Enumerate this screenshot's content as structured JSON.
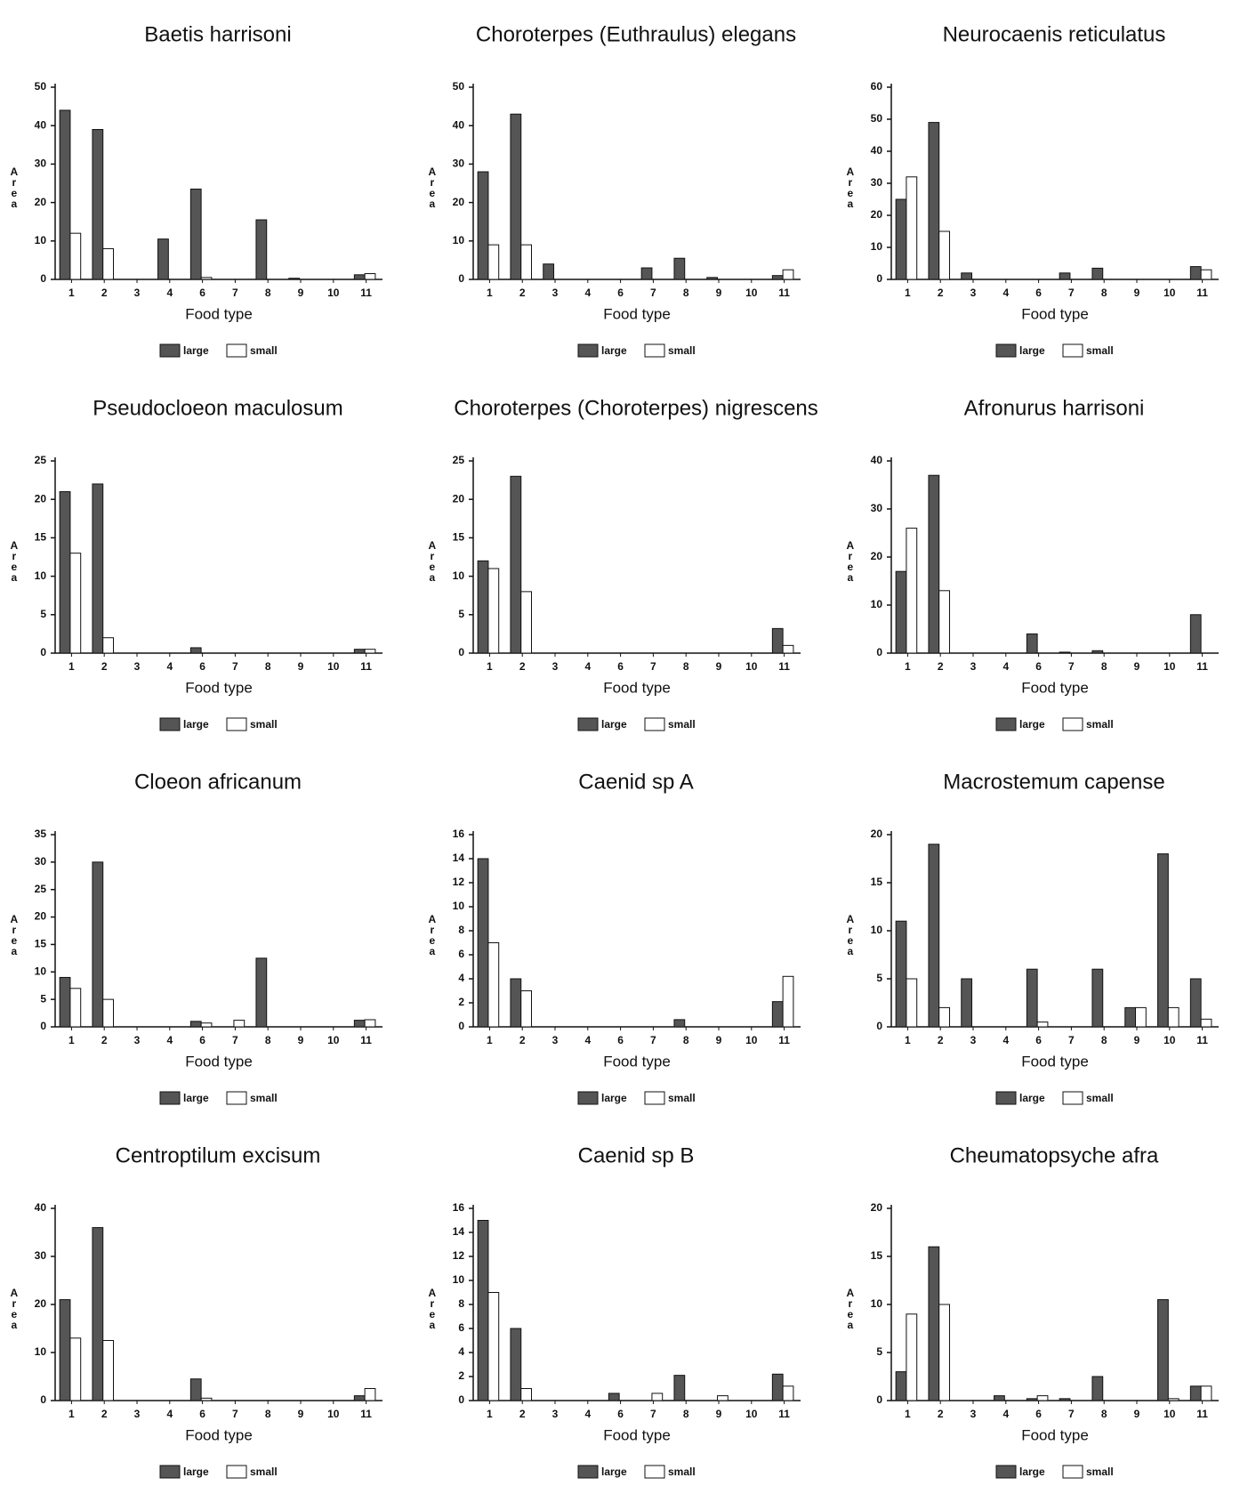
{
  "chart_data": [
    {
      "type": "bar",
      "title": "Baetis harrisoni",
      "x_label": "Food type",
      "y_label": "Area",
      "categories": [
        "1",
        "2",
        "3",
        "4",
        "6",
        "7",
        "8",
        "9",
        "10",
        "11"
      ],
      "series": [
        {
          "name": "large",
          "color": "#555555",
          "values": [
            44,
            39,
            0,
            10.5,
            23.5,
            0,
            15.5,
            0.3,
            0,
            1.2
          ]
        },
        {
          "name": "small",
          "color": "#ffffff",
          "values": [
            12,
            8,
            0,
            0,
            0.5,
            0,
            0,
            0,
            0,
            1.5
          ]
        }
      ],
      "ylim": [
        0,
        50
      ],
      "yticks": [
        0,
        10,
        20,
        30,
        40,
        50
      ]
    },
    {
      "type": "bar",
      "title": "Choroterpes (Euthraulus) elegans",
      "x_label": "Food type",
      "y_label": "Area",
      "categories": [
        "1",
        "2",
        "3",
        "4",
        "6",
        "7",
        "8",
        "9",
        "10",
        "11"
      ],
      "series": [
        {
          "name": "large",
          "color": "#555555",
          "values": [
            28,
            43,
            4,
            0,
            0,
            3,
            5.5,
            0.5,
            0,
            1
          ]
        },
        {
          "name": "small",
          "color": "#ffffff",
          "values": [
            9,
            9,
            0,
            0,
            0,
            0,
            0,
            0,
            0,
            2.5
          ]
        }
      ],
      "ylim": [
        0,
        50
      ],
      "yticks": [
        0,
        10,
        20,
        30,
        40,
        50
      ]
    },
    {
      "type": "bar",
      "title": "Neurocaenis reticulatus",
      "x_label": "Food type",
      "y_label": "Area",
      "categories": [
        "1",
        "2",
        "3",
        "4",
        "6",
        "7",
        "8",
        "9",
        "10",
        "11"
      ],
      "series": [
        {
          "name": "large",
          "color": "#555555",
          "values": [
            25,
            49,
            2,
            0,
            0,
            2,
            3.5,
            0,
            0,
            4
          ]
        },
        {
          "name": "small",
          "color": "#ffffff",
          "values": [
            32,
            15,
            0,
            0,
            0,
            0,
            0,
            0,
            0,
            3
          ]
        }
      ],
      "ylim": [
        0,
        60
      ],
      "yticks": [
        0,
        10,
        20,
        30,
        40,
        50,
        60
      ]
    },
    {
      "type": "bar",
      "title": "Pseudocloeon maculosum",
      "x_label": "Food type",
      "y_label": "Area",
      "categories": [
        "1",
        "2",
        "3",
        "4",
        "6",
        "7",
        "8",
        "9",
        "10",
        "11"
      ],
      "series": [
        {
          "name": "large",
          "color": "#555555",
          "values": [
            21,
            22,
            0,
            0,
            0.7,
            0,
            0,
            0,
            0,
            0.5
          ]
        },
        {
          "name": "small",
          "color": "#ffffff",
          "values": [
            13,
            2,
            0,
            0,
            0,
            0,
            0,
            0,
            0,
            0.5
          ]
        }
      ],
      "ylim": [
        0,
        25
      ],
      "yticks": [
        0,
        5,
        10,
        15,
        20,
        25
      ]
    },
    {
      "type": "bar",
      "title": "Choroterpes (Choroterpes) nigrescens",
      "x_label": "Food type",
      "y_label": "Area",
      "categories": [
        "1",
        "2",
        "3",
        "4",
        "6",
        "7",
        "8",
        "9",
        "10",
        "11"
      ],
      "series": [
        {
          "name": "large",
          "color": "#555555",
          "values": [
            12,
            23,
            0,
            0,
            0,
            0,
            0,
            0,
            0,
            3.2
          ]
        },
        {
          "name": "small",
          "color": "#ffffff",
          "values": [
            11,
            8,
            0,
            0,
            0,
            0,
            0,
            0,
            0,
            1
          ]
        }
      ],
      "ylim": [
        0,
        25
      ],
      "yticks": [
        0,
        5,
        10,
        15,
        20,
        25
      ]
    },
    {
      "type": "bar",
      "title": "Afronurus harrisoni",
      "x_label": "Food type",
      "y_label": "Area",
      "categories": [
        "1",
        "2",
        "3",
        "4",
        "6",
        "7",
        "8",
        "9",
        "10",
        "11"
      ],
      "series": [
        {
          "name": "large",
          "color": "#555555",
          "values": [
            17,
            37,
            0,
            0,
            4,
            0.2,
            0.5,
            0,
            0,
            8
          ]
        },
        {
          "name": "small",
          "color": "#ffffff",
          "values": [
            26,
            13,
            0,
            0,
            0,
            0,
            0,
            0,
            0,
            0
          ]
        }
      ],
      "ylim": [
        0,
        40
      ],
      "yticks": [
        0,
        10,
        20,
        30,
        40
      ]
    },
    {
      "type": "bar",
      "title": "Cloeon africanum",
      "x_label": "Food type",
      "y_label": "Area",
      "categories": [
        "1",
        "2",
        "3",
        "4",
        "6",
        "7",
        "8",
        "9",
        "10",
        "11"
      ],
      "series": [
        {
          "name": "large",
          "color": "#555555",
          "values": [
            9,
            30,
            0,
            0,
            1,
            0,
            12.5,
            0,
            0,
            1.2
          ]
        },
        {
          "name": "small",
          "color": "#ffffff",
          "values": [
            7,
            5,
            0,
            0,
            0.7,
            1.2,
            0,
            0,
            0,
            1.3
          ]
        }
      ],
      "ylim": [
        0,
        35
      ],
      "yticks": [
        0,
        5,
        10,
        15,
        20,
        25,
        30,
        35
      ]
    },
    {
      "type": "bar",
      "title": "Caenid sp A",
      "x_label": "Food type",
      "y_label": "Area",
      "categories": [
        "1",
        "2",
        "3",
        "4",
        "6",
        "7",
        "8",
        "9",
        "10",
        "11"
      ],
      "series": [
        {
          "name": "large",
          "color": "#555555",
          "values": [
            14,
            4,
            0,
            0,
            0,
            0,
            0.6,
            0,
            0,
            2.1
          ]
        },
        {
          "name": "small",
          "color": "#ffffff",
          "values": [
            7,
            3,
            0,
            0,
            0,
            0,
            0,
            0,
            0,
            4.2
          ]
        }
      ],
      "ylim": [
        0,
        16
      ],
      "yticks": [
        0,
        2,
        4,
        6,
        8,
        10,
        12,
        14,
        16
      ]
    },
    {
      "type": "bar",
      "title": "Macrostemum capense",
      "x_label": "Food type",
      "y_label": "Area",
      "categories": [
        "1",
        "2",
        "3",
        "4",
        "6",
        "7",
        "8",
        "9",
        "10",
        "11"
      ],
      "series": [
        {
          "name": "large",
          "color": "#555555",
          "values": [
            11,
            19,
            5,
            0,
            6,
            0,
            6,
            2,
            18,
            5
          ]
        },
        {
          "name": "small",
          "color": "#ffffff",
          "values": [
            5,
            2,
            0,
            0,
            0.5,
            0,
            0,
            2,
            2,
            0.8
          ]
        }
      ],
      "ylim": [
        0,
        20
      ],
      "yticks": [
        0,
        5,
        10,
        15,
        20
      ]
    },
    {
      "type": "bar",
      "title": "Centroptilum excisum",
      "x_label": "Food type",
      "y_label": "Area",
      "categories": [
        "1",
        "2",
        "3",
        "4",
        "6",
        "7",
        "8",
        "9",
        "10",
        "11"
      ],
      "series": [
        {
          "name": "large",
          "color": "#555555",
          "values": [
            21,
            36,
            0,
            0,
            4.5,
            0,
            0,
            0,
            0,
            1
          ]
        },
        {
          "name": "small",
          "color": "#ffffff",
          "values": [
            13,
            12.5,
            0,
            0,
            0.5,
            0,
            0,
            0,
            0,
            2.5
          ]
        }
      ],
      "ylim": [
        0,
        40
      ],
      "yticks": [
        0,
        10,
        20,
        30,
        40
      ]
    },
    {
      "type": "bar",
      "title": "Caenid sp B",
      "x_label": "Food type",
      "y_label": "Area",
      "categories": [
        "1",
        "2",
        "3",
        "4",
        "6",
        "7",
        "8",
        "9",
        "10",
        "11"
      ],
      "series": [
        {
          "name": "large",
          "color": "#555555",
          "values": [
            15,
            6,
            0,
            0,
            0.6,
            0,
            2.1,
            0,
            0,
            2.2
          ]
        },
        {
          "name": "small",
          "color": "#ffffff",
          "values": [
            9,
            1,
            0,
            0,
            0,
            0.6,
            0,
            0.4,
            0,
            1.2
          ]
        }
      ],
      "ylim": [
        0,
        16
      ],
      "yticks": [
        0,
        2,
        4,
        6,
        8,
        10,
        12,
        14,
        16
      ]
    },
    {
      "type": "bar",
      "title": "Cheumatopsyche afra",
      "x_label": "Food type",
      "y_label": "Area",
      "categories": [
        "1",
        "2",
        "3",
        "4",
        "6",
        "7",
        "8",
        "9",
        "10",
        "11"
      ],
      "series": [
        {
          "name": "large",
          "color": "#555555",
          "values": [
            3,
            16,
            0,
            0.5,
            0.2,
            0.2,
            2.5,
            0,
            10.5,
            1.5
          ]
        },
        {
          "name": "small",
          "color": "#ffffff",
          "values": [
            9,
            10,
            0,
            0,
            0.5,
            0,
            0,
            0,
            0.2,
            1.5
          ]
        }
      ],
      "ylim": [
        0,
        20
      ],
      "yticks": [
        0,
        5,
        10,
        15,
        20
      ]
    }
  ]
}
